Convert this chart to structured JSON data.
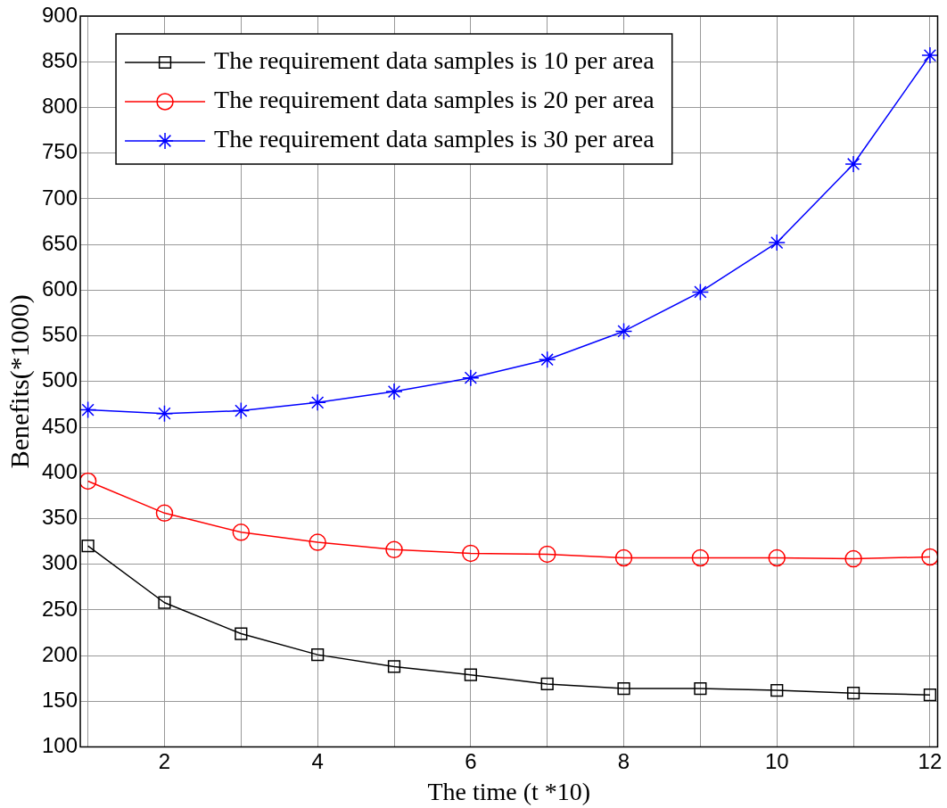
{
  "chart_data": {
    "type": "line",
    "xlabel": "The time (t *10)",
    "ylabel": "Benefits(*1000)",
    "x": [
      1,
      2,
      3,
      4,
      5,
      6,
      7,
      8,
      9,
      10,
      11,
      12
    ],
    "xlim": [
      0.9,
      12.1
    ],
    "xticks": [
      {
        "value": 1,
        "label": null
      },
      2,
      {
        "value": 3,
        "label": null
      },
      4,
      {
        "value": 5,
        "label": null
      },
      6,
      {
        "value": 7,
        "label": null
      },
      8,
      {
        "value": 9,
        "label": null
      },
      10,
      {
        "value": 11,
        "label": null
      },
      12
    ],
    "ylim": [
      100,
      900
    ],
    "yticks": [
      100,
      150,
      200,
      250,
      300,
      350,
      400,
      450,
      500,
      550,
      600,
      650,
      700,
      750,
      800,
      850,
      900
    ],
    "grid": true,
    "legend": "top left",
    "line_style": "solid",
    "series": [
      {
        "name": "The requirement data samples is 10 per area",
        "color": "#000000",
        "marker": "square",
        "values": [
          320,
          258,
          224,
          201,
          188,
          179,
          169,
          164,
          164,
          162,
          159,
          157
        ]
      },
      {
        "name": "The requirement data samples is 20 per area",
        "color": "#ff0000",
        "marker": "circle",
        "values": [
          391,
          356,
          335,
          324,
          316,
          312,
          311,
          307,
          307,
          307,
          306,
          308
        ]
      },
      {
        "name": "The requirement data samples is 30 per area",
        "color": "#0000ff",
        "marker": "cross",
        "values": [
          469,
          465,
          468,
          477,
          489,
          504,
          524,
          555,
          598,
          652,
          738,
          857
        ]
      }
    ]
  }
}
